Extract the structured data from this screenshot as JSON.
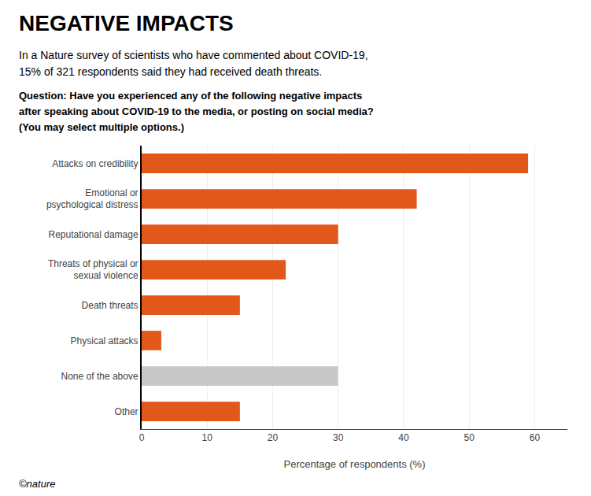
{
  "chart_data": {
    "type": "bar",
    "orientation": "horizontal",
    "title": "NEGATIVE IMPACTS",
    "subtitle": [
      "In a Nature survey of scientists who have commented about COVID-19,",
      "15% of 321 respondents said they had received death threats."
    ],
    "annotations": [
      "Question: Have you experienced any of the following negative impacts",
      "after speaking about COVID-19 to the media, or posting on social media?",
      "(You may select multiple options.)",
      "©nature"
    ],
    "categories": [
      "Attacks on credibility",
      "Emotional or\npsychological distress",
      "Reputational damage",
      "Threats of physical or\nsexual violence",
      "Death threats",
      "Physical attacks",
      "None of the above",
      "Other"
    ],
    "values": [
      59,
      42,
      30,
      22,
      15,
      3,
      30,
      15
    ],
    "colors": [
      "#E2581A",
      "#E2581A",
      "#E2581A",
      "#E2581A",
      "#E2581A",
      "#E2581A",
      "#C8C8C8",
      "#E2581A"
    ],
    "xlabel": "Percentage of respondents (%)",
    "xlim": [
      0,
      65
    ],
    "xticks": [
      0,
      10,
      20,
      30,
      40,
      50,
      60
    ],
    "grid": true
  }
}
